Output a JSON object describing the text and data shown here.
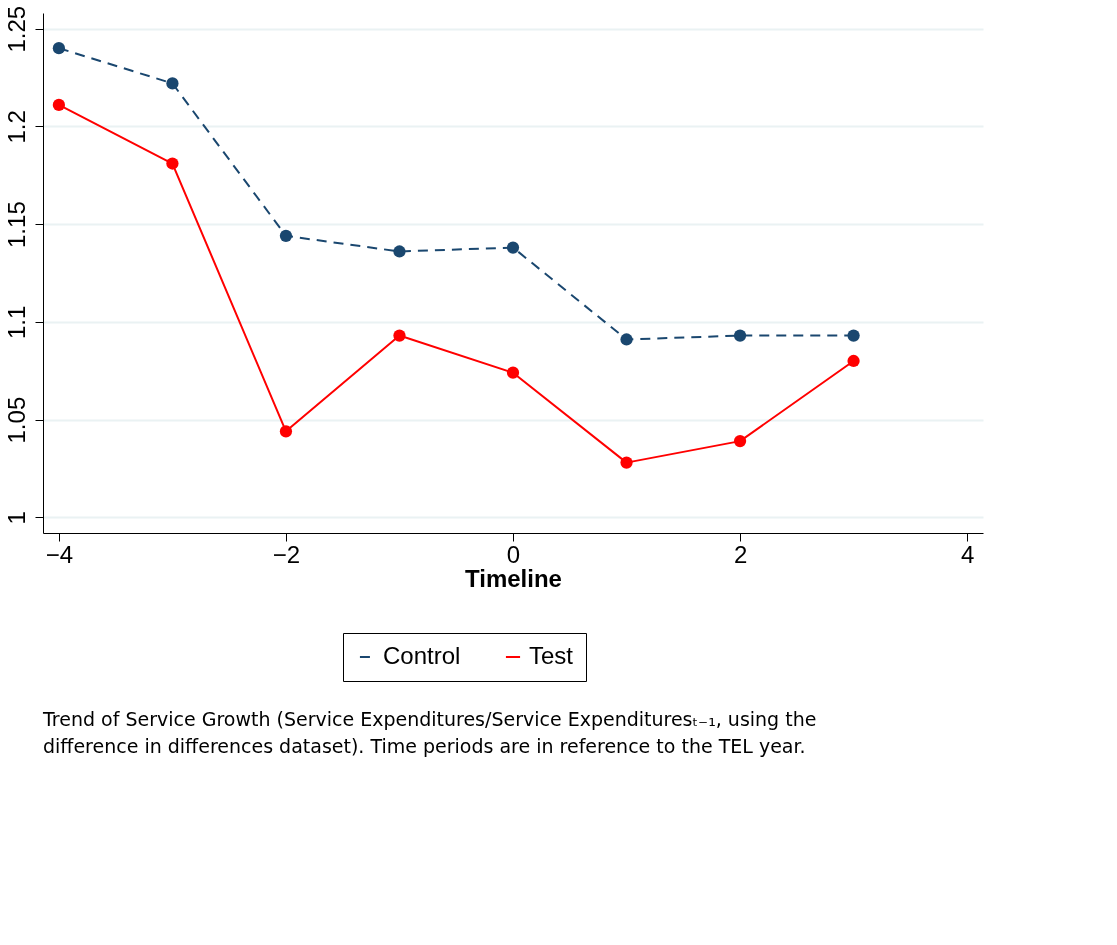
{
  "chart_data": {
    "type": "line",
    "xlabel": "Timeline",
    "x": [
      -4,
      -3,
      -2,
      -1,
      0,
      1,
      2,
      3
    ],
    "series": [
      {
        "name": "Control",
        "color": "#1a476f",
        "line_style": "dashed",
        "values": [
          1.24,
          1.222,
          1.144,
          1.136,
          1.138,
          1.091,
          1.093,
          1.093
        ]
      },
      {
        "name": "Test",
        "color": "#ff0000",
        "line_style": "solid",
        "values": [
          1.211,
          1.181,
          1.044,
          1.093,
          1.074,
          1.028,
          1.039,
          1.08
        ]
      }
    ],
    "xlim": [
      -4.14,
      4.14
    ],
    "xticks": [
      -4,
      -2,
      0,
      2,
      4
    ],
    "ylim": [
      0.992,
      1.258
    ],
    "yticks": [
      1,
      1.05,
      1.1,
      1.15,
      1.2,
      1.25
    ],
    "grid": "y",
    "legend": "bottom",
    "marker": "circle",
    "annotations": [
      "Trend of Service Growth (Service Expenditures/Service Expendituresₜ₋₁, using the difference in differences dataset).  Time periods are in reference to the TEL year."
    ]
  }
}
